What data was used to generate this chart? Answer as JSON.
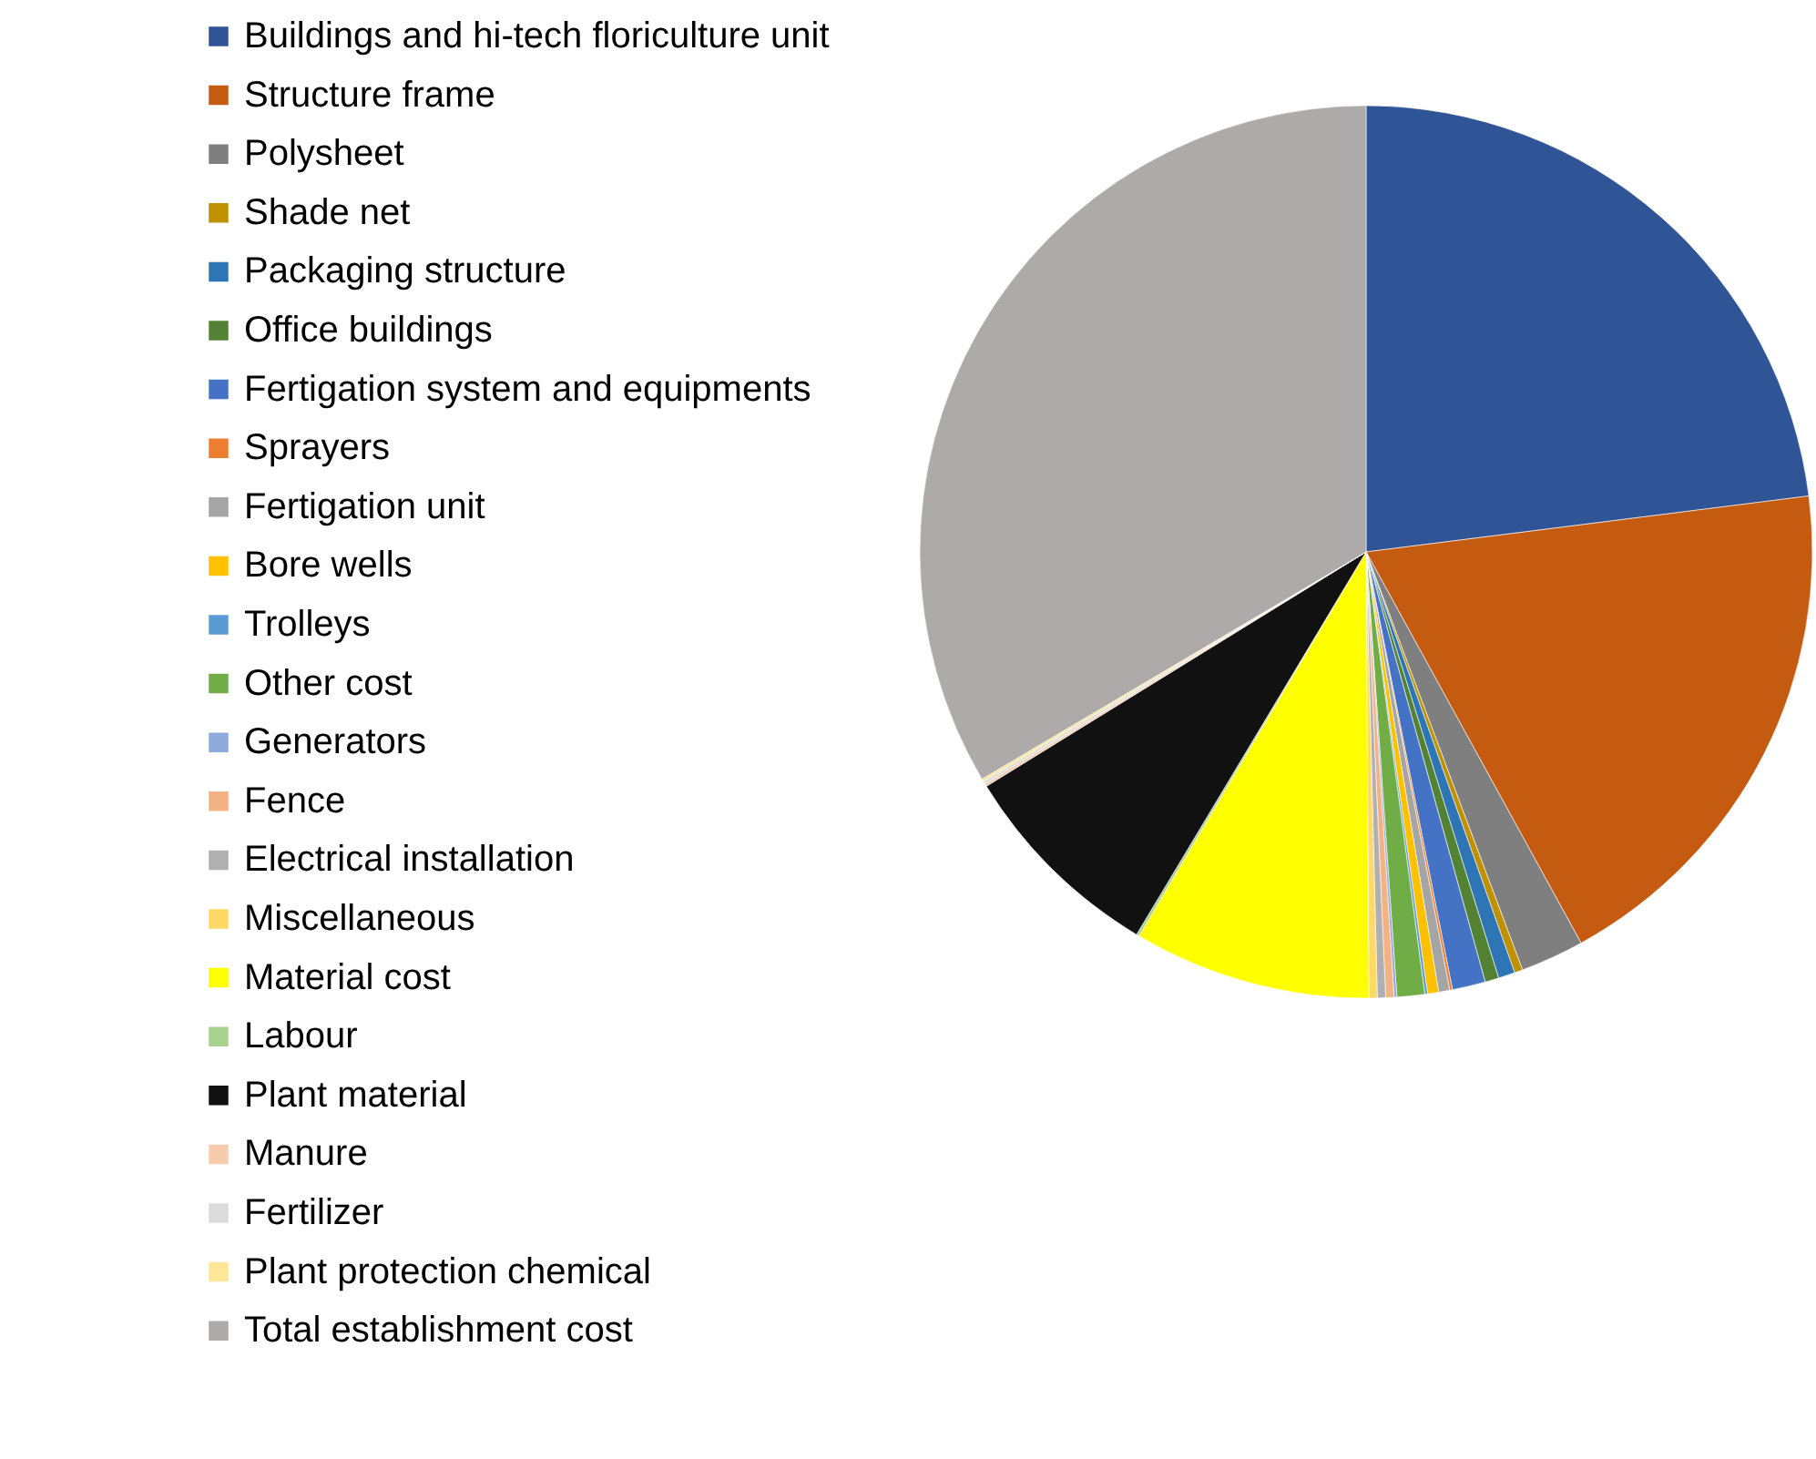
{
  "chart_data": {
    "type": "pie",
    "legend": "left",
    "categories": [
      "Buildings and hi-tech floriculture unit",
      "Structure frame",
      "Polysheet",
      "Shade net",
      "Packaging structure",
      "Office buildings",
      "Fertigation system and equipments",
      "Sprayers",
      "Fertigation unit",
      "Bore wells",
      "Trolleys",
      "Other cost",
      "Generators",
      "Fence",
      "Electrical installation",
      "Miscellaneous",
      "Material cost",
      "Labour",
      "Plant material",
      "Manure",
      "Fertilizer",
      "Plant protection chemical",
      "Total establishment cost"
    ],
    "values": [
      23,
      19,
      2.3,
      0.3,
      0.6,
      0.5,
      1.2,
      0.1,
      0.4,
      0.4,
      0.1,
      1,
      0.1,
      0.3,
      0.3,
      0.3,
      8.6,
      0.1,
      7.6,
      0.1,
      0.1,
      0.1,
      33.5
    ],
    "colors": [
      "#2f5597",
      "#c55a11",
      "#7f7f7f",
      "#bf9000",
      "#2e75b6",
      "#548235",
      "#4472c4",
      "#ed7d31",
      "#a5a5a5",
      "#ffc000",
      "#5b9bd5",
      "#70ad47",
      "#8faadc",
      "#f4b183",
      "#b0b0b0",
      "#ffd966",
      "#ffff00",
      "#a9d18e",
      "#111111",
      "#f8cbad",
      "#dbdbdb",
      "#ffe699",
      "#aeaaaa"
    ]
  }
}
